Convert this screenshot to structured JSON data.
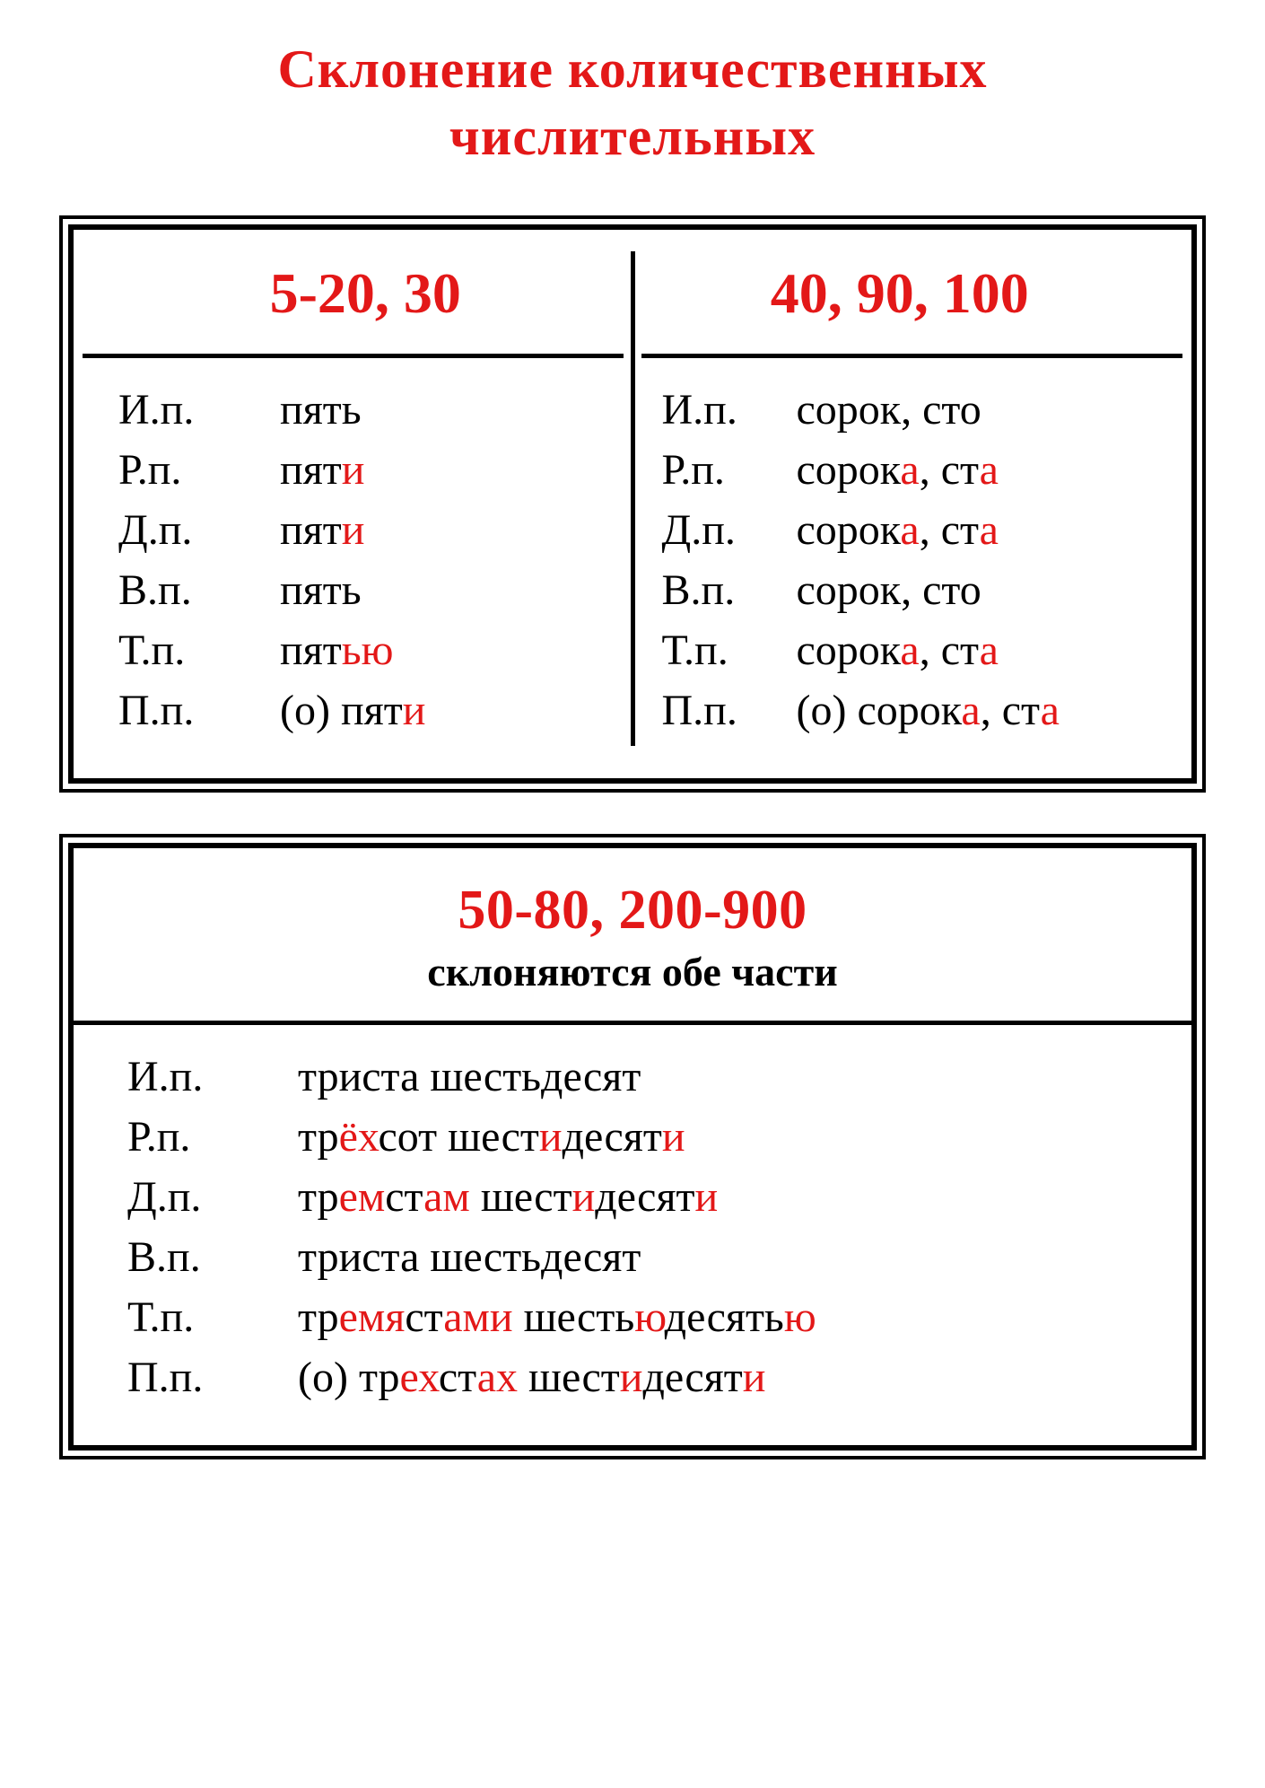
{
  "colors": {
    "accent": "#e31818",
    "text": "#000000",
    "background": "#ffffff",
    "border": "#000000"
  },
  "title_line1": "Склонение количественных",
  "title_line2": "числительных",
  "box1": {
    "col1": {
      "header": "5-20, 30",
      "rows": [
        {
          "case": "И.п.",
          "segments": [
            {
              "t": "пять",
              "h": false
            }
          ]
        },
        {
          "case": "Р.п.",
          "segments": [
            {
              "t": "пят",
              "h": false
            },
            {
              "t": "и",
              "h": true
            }
          ]
        },
        {
          "case": "Д.п.",
          "segments": [
            {
              "t": "пят",
              "h": false
            },
            {
              "t": "и",
              "h": true
            }
          ]
        },
        {
          "case": "В.п.",
          "segments": [
            {
              "t": "пять",
              "h": false
            }
          ]
        },
        {
          "case": "Т.п.",
          "segments": [
            {
              "t": "пят",
              "h": false
            },
            {
              "t": "ью",
              "h": true
            }
          ]
        },
        {
          "case": "П.п.",
          "segments": [
            {
              "t": "(о) пят",
              "h": false
            },
            {
              "t": "и",
              "h": true
            }
          ]
        }
      ]
    },
    "col2": {
      "header": "40, 90, 100",
      "rows": [
        {
          "case": "И.п.",
          "segments": [
            {
              "t": "сорок, сто",
              "h": false
            }
          ]
        },
        {
          "case": "Р.п.",
          "segments": [
            {
              "t": "сорок",
              "h": false
            },
            {
              "t": "а",
              "h": true
            },
            {
              "t": ", ст",
              "h": false
            },
            {
              "t": "а",
              "h": true
            }
          ]
        },
        {
          "case": "Д.п.",
          "segments": [
            {
              "t": "сорок",
              "h": false
            },
            {
              "t": "а",
              "h": true
            },
            {
              "t": ", ст",
              "h": false
            },
            {
              "t": "а",
              "h": true
            }
          ]
        },
        {
          "case": "В.п.",
          "segments": [
            {
              "t": "сорок, сто",
              "h": false
            }
          ]
        },
        {
          "case": "Т.п.",
          "segments": [
            {
              "t": "сорок",
              "h": false
            },
            {
              "t": "а",
              "h": true
            },
            {
              "t": ", ст",
              "h": false
            },
            {
              "t": "а",
              "h": true
            }
          ]
        },
        {
          "case": "П.п.",
          "segments": [
            {
              "t": "(о) сорок",
              "h": false
            },
            {
              "t": "а",
              "h": true
            },
            {
              "t": ", ст",
              "h": false
            },
            {
              "t": "а",
              "h": true
            }
          ]
        }
      ]
    }
  },
  "box2": {
    "header_big": "50-80, 200-900",
    "header_sub": "склоняются обе части",
    "rows": [
      {
        "case": "И.п.",
        "segments": [
          {
            "t": "триста шестьдесят",
            "h": false
          }
        ]
      },
      {
        "case": "Р.п.",
        "segments": [
          {
            "t": "тр",
            "h": false
          },
          {
            "t": "ёх",
            "h": true
          },
          {
            "t": "сот шест",
            "h": false
          },
          {
            "t": "и",
            "h": true
          },
          {
            "t": "десят",
            "h": false
          },
          {
            "t": "и",
            "h": true
          }
        ]
      },
      {
        "case": "Д.п.",
        "segments": [
          {
            "t": "тр",
            "h": false
          },
          {
            "t": "ем",
            "h": true
          },
          {
            "t": "ст",
            "h": false
          },
          {
            "t": "ам",
            "h": true
          },
          {
            "t": " шест",
            "h": false
          },
          {
            "t": "и",
            "h": true
          },
          {
            "t": "десят",
            "h": false
          },
          {
            "t": "и",
            "h": true
          }
        ]
      },
      {
        "case": "В.п.",
        "segments": [
          {
            "t": "триста шестьдесят",
            "h": false
          }
        ]
      },
      {
        "case": "Т.п.",
        "segments": [
          {
            "t": "тр",
            "h": false
          },
          {
            "t": "емя",
            "h": true
          },
          {
            "t": "ст",
            "h": false
          },
          {
            "t": "ами",
            "h": true
          },
          {
            "t": " шесть",
            "h": false
          },
          {
            "t": "ю",
            "h": true
          },
          {
            "t": "десять",
            "h": false
          },
          {
            "t": "ю",
            "h": true
          }
        ]
      },
      {
        "case": "П.п.",
        "segments": [
          {
            "t": "(о) тр",
            "h": false
          },
          {
            "t": "ех",
            "h": true
          },
          {
            "t": "ст",
            "h": false
          },
          {
            "t": "ах",
            "h": true
          },
          {
            "t": " шест",
            "h": false
          },
          {
            "t": "и",
            "h": true
          },
          {
            "t": "десят",
            "h": false
          },
          {
            "t": "и",
            "h": true
          }
        ]
      }
    ]
  },
  "fontsizes": {
    "title": 60,
    "col_head": 64,
    "row": 48,
    "head2_big": 62,
    "head2_sub": 46
  }
}
